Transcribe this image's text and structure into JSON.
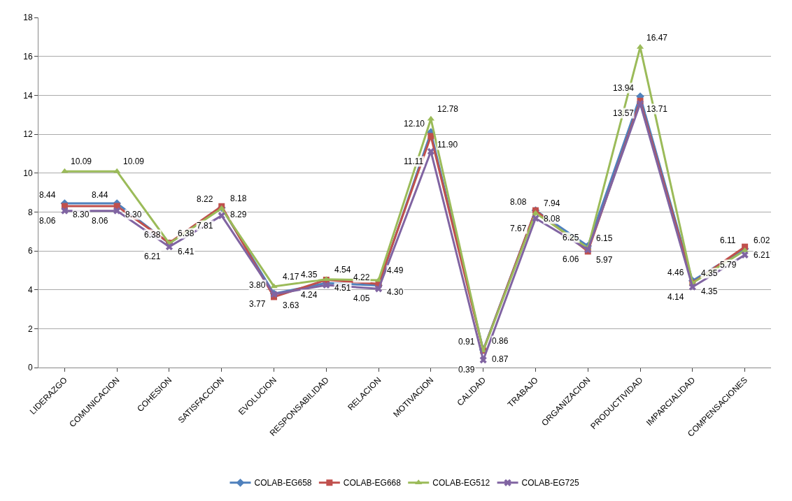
{
  "chart_data": {
    "type": "line",
    "categories": [
      "LIDERAZGO",
      "COMUNICACION",
      "COHESION",
      "SATISFACCION",
      "EVOLUCION",
      "RESPONSABILIDAD",
      "RELACION",
      "MOTIVACION",
      "CALIDAD",
      "TRABAJO",
      "ORGANIZACION",
      "PRODUCTIVIDAD",
      "IMPARCIALIDAD",
      "COMPENSACIONES"
    ],
    "series": [
      {
        "name": "COLAB-EG658",
        "color": "#4f81bd",
        "marker": "diamond",
        "values": [
          8.44,
          8.44,
          6.38,
          8.22,
          3.8,
          4.35,
          4.22,
          12.1,
          0.91,
          8.08,
          6.25,
          13.94,
          4.46,
          6.11
        ],
        "value_labels": [
          "8.44",
          "8.44",
          "6.38",
          "8.22",
          "3.80",
          "4.35",
          "4.22",
          "12.10",
          "0.91",
          "8.08",
          "6.25",
          "13.94",
          "4.46",
          "6.11"
        ]
      },
      {
        "name": "COLAB-EG668",
        "color": "#c0504d",
        "marker": "square",
        "values": [
          8.3,
          8.3,
          6.41,
          8.29,
          3.63,
          4.51,
          4.3,
          11.9,
          0.87,
          8.08,
          5.97,
          13.71,
          4.35,
          6.21
        ],
        "value_labels": [
          "8.30",
          "8.30",
          "6.41",
          "8.29",
          "3.63",
          "4.51",
          "4.30",
          "11.90",
          "0.87",
          "8.08",
          "5.97",
          "13.71",
          "4.35",
          "6.21"
        ]
      },
      {
        "name": "COLAB-EG512",
        "color": "#9bbb59",
        "marker": "triangle",
        "values": [
          10.09,
          10.09,
          6.38,
          8.18,
          4.17,
          4.54,
          4.49,
          12.78,
          0.86,
          7.94,
          6.15,
          16.47,
          4.35,
          6.02
        ],
        "value_labels": [
          "10.09",
          "10.09",
          "6.38",
          "8.18",
          "4.17",
          "4.54",
          "4.49",
          "12.78",
          "0.86",
          "7.94",
          "6.15",
          "16.47",
          "4.35",
          "6.02"
        ]
      },
      {
        "name": "COLAB-EG725",
        "color": "#8064a2",
        "marker": "cross",
        "values": [
          8.06,
          8.06,
          6.21,
          7.81,
          3.77,
          4.24,
          4.05,
          11.11,
          0.39,
          7.67,
          6.06,
          13.57,
          4.14,
          5.79
        ],
        "value_labels": [
          "8.06",
          "8.06",
          "6.21",
          "7.81",
          "3.77",
          "4.24",
          "4.05",
          "11.11",
          "0.39",
          "7.67",
          "6.06",
          "13.57",
          "4.14",
          "5.79"
        ]
      }
    ],
    "ylim": [
      0,
      18
    ],
    "yticks": [
      0,
      2,
      4,
      6,
      8,
      10,
      12,
      14,
      16,
      18
    ],
    "grid": "y",
    "legend": "bottom"
  }
}
